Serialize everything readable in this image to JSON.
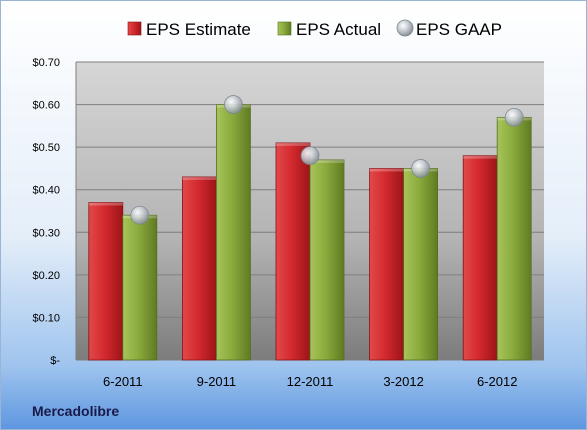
{
  "chart_data": {
    "type": "bar",
    "categories": [
      "6-2011",
      "9-2011",
      "12-2011",
      "3-2012",
      "6-2012"
    ],
    "series": [
      {
        "name": "EPS Estimate",
        "kind": "bar",
        "color": "#c8202a",
        "values": [
          0.37,
          0.43,
          0.51,
          0.45,
          0.48
        ]
      },
      {
        "name": "EPS Actual",
        "kind": "bar",
        "color": "#8aaa3a",
        "values": [
          0.34,
          0.6,
          0.47,
          0.45,
          0.57
        ]
      },
      {
        "name": "EPS GAAP",
        "kind": "marker",
        "color": "#b0b8c0",
        "values": [
          0.34,
          0.6,
          0.48,
          0.45,
          0.57
        ]
      }
    ],
    "ylim": [
      0,
      0.7
    ],
    "yticks": [
      0,
      0.1,
      0.2,
      0.3,
      0.4,
      0.5,
      0.6,
      0.7
    ],
    "ytick_labels": [
      "$-",
      "$0.10",
      "$0.20",
      "$0.30",
      "$0.40",
      "$0.50",
      "$0.60",
      "$0.70"
    ],
    "grid": true,
    "legend_position": "top"
  },
  "brand_label": "Mercadolibre"
}
